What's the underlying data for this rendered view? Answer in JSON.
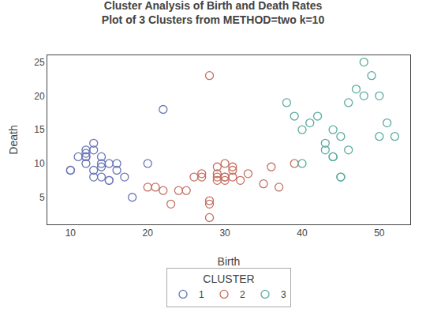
{
  "chart_data": {
    "type": "scatter",
    "title": "Cluster Analysis of Birth and Death Rates",
    "subtitle": "Plot of 3 Clusters from METHOD=two k=10",
    "xlabel": "Birth",
    "ylabel": "Death",
    "xlim": [
      7,
      54
    ],
    "ylim": [
      1,
      26
    ],
    "xticks": [
      10,
      20,
      30,
      40,
      50
    ],
    "yticks": [
      5,
      10,
      15,
      20,
      25
    ],
    "grid": false,
    "legend": "bottom",
    "legend_title": "CLUSTER",
    "marker": "circle-open",
    "series": [
      {
        "name": "1",
        "color": "#6b76b8",
        "x": [
          10,
          10,
          11,
          12,
          12,
          12,
          12,
          12,
          13,
          13,
          13,
          13,
          14,
          14,
          14,
          14,
          15,
          15,
          15,
          16,
          16,
          17,
          18,
          20,
          22
        ],
        "values": [
          9,
          9,
          11,
          11,
          11.5,
          12,
          11,
          10,
          13,
          12,
          9,
          8,
          8,
          9.5,
          10,
          11,
          7.5,
          7.5,
          10,
          9,
          10,
          8,
          5,
          10,
          18
        ]
      },
      {
        "name": "2",
        "color": "#c47060",
        "x": [
          20,
          21,
          22,
          23,
          24,
          25,
          26,
          27,
          27,
          28,
          28,
          28,
          28,
          29,
          29,
          29,
          29,
          30,
          30,
          30,
          30,
          31,
          31,
          31,
          32,
          33,
          35,
          36,
          37,
          39
        ],
        "values": [
          6.5,
          6.5,
          6,
          4,
          6,
          6,
          8,
          8,
          8.5,
          2,
          4,
          4.5,
          23,
          7.5,
          8,
          8.5,
          9.5,
          7.5,
          8,
          8,
          10,
          8,
          9,
          9.5,
          7.5,
          8.5,
          7,
          9.5,
          6.5,
          10
        ]
      },
      {
        "name": "3",
        "color": "#5aab9e",
        "x": [
          38,
          39,
          40,
          40,
          41,
          42,
          43,
          43,
          44,
          44,
          44,
          45,
          45,
          45,
          46,
          46,
          47,
          48,
          48,
          49,
          50,
          50,
          51,
          52
        ],
        "values": [
          19,
          17,
          15,
          10,
          16,
          17,
          12,
          13,
          11,
          11,
          15,
          8,
          8,
          14,
          19,
          12,
          21,
          20,
          25,
          23,
          20,
          14,
          16,
          14
        ]
      }
    ]
  }
}
